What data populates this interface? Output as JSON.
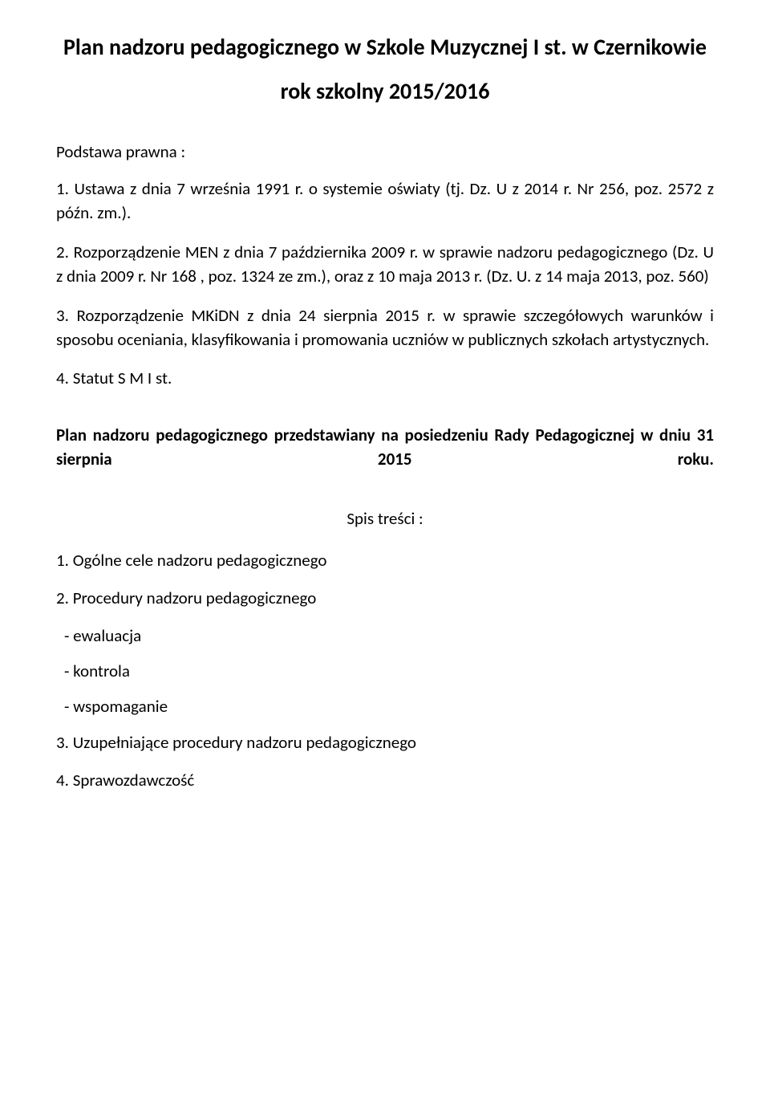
{
  "title": {
    "line1": "Plan nadzoru pedagogicznego w Szkole Muzycznej I st. w Czernikowie",
    "line2": "rok szkolny 2015/2016"
  },
  "basis_heading": "Podstawa prawna :",
  "basis": {
    "item1": "1. Ustawa z dnia 7 września 1991 r. o systemie oświaty (tj. Dz. U z 2014 r. Nr 256, poz. 2572 z późn. zm.).",
    "item2": "2. Rozporządzenie MEN z dnia 7 października 2009 r. w sprawie nadzoru pedagogicznego (Dz. U z dnia 2009 r. Nr 168 , poz. 1324 ze zm.), oraz z 10 maja 2013 r. (Dz. U. z 14 maja 2013, poz. 560)",
    "item3": "3. Rozporządzenie MKiDN z dnia 24 sierpnia 2015 r. w sprawie szczegółowych warunków i sposobu oceniania, klasyfikowania i promowania uczniów w publicznych szkołach artystycznych.",
    "item4": "4. Statut S M I st."
  },
  "presentation_note": "Plan nadzoru pedagogicznego przedstawiany na posiedzeniu Rady Pedagogicznej w dniu 31 sierpnia 2015 roku.",
  "toc": {
    "heading": "Spis treści :",
    "item1": "1. Ogólne cele nadzoru pedagogicznego",
    "item2": "2. Procedury nadzoru pedagogicznego",
    "sub1": "- ewaluacja",
    "sub2": "- kontrola",
    "sub3": "- wspomaganie",
    "item3": "3. Uzupełniające procedury nadzoru pedagogicznego",
    "item4": "4. Sprawozdawczość"
  },
  "colors": {
    "text": "#000000",
    "background": "#ffffff"
  },
  "typography": {
    "title_fontsize": 28,
    "body_fontsize": 21,
    "title_weight": "bold",
    "body_weight": "normal"
  }
}
